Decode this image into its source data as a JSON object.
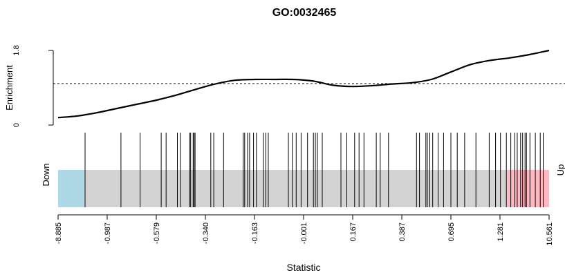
{
  "chart_data": {
    "type": "line",
    "title": "GO:0032465",
    "xlabel": "Statistic",
    "ylabel": "Enrichment",
    "y_ticks": [
      "0",
      "1.8"
    ],
    "ylim": [
      0,
      1.8
    ],
    "threshold_line": 1.0,
    "x_tick_labels": [
      "-8.885",
      "-0.987",
      "-0.579",
      "-0.340",
      "-0.163",
      "-0.001",
      "0.167",
      "0.387",
      "0.695",
      "1.281",
      "10.561"
    ],
    "x_tick_positions": [
      0,
      0.1,
      0.2,
      0.3,
      0.4,
      0.5,
      0.6,
      0.7,
      0.8,
      0.9,
      1.0
    ],
    "enrichment_curve": {
      "x": [
        0,
        0.04,
        0.08,
        0.12,
        0.16,
        0.2,
        0.24,
        0.28,
        0.32,
        0.36,
        0.4,
        0.44,
        0.48,
        0.52,
        0.56,
        0.6,
        0.64,
        0.68,
        0.72,
        0.76,
        0.8,
        0.84,
        0.88,
        0.92,
        0.96,
        1.0
      ],
      "y": [
        0.18,
        0.22,
        0.3,
        0.4,
        0.5,
        0.6,
        0.72,
        0.86,
        0.99,
        1.08,
        1.1,
        1.1,
        1.1,
        1.06,
        0.96,
        0.93,
        0.95,
        0.99,
        1.02,
        1.1,
        1.28,
        1.46,
        1.56,
        1.62,
        1.7,
        1.8
      ]
    },
    "gene_ranks": [
      0.055,
      0.128,
      0.167,
      0.21,
      0.22,
      0.243,
      0.249,
      0.268,
      0.27,
      0.275,
      0.277,
      0.279,
      0.311,
      0.317,
      0.337,
      0.377,
      0.38,
      0.386,
      0.39,
      0.398,
      0.404,
      0.418,
      0.423,
      0.428,
      0.469,
      0.477,
      0.485,
      0.495,
      0.508,
      0.52,
      0.524,
      0.528,
      0.538,
      0.576,
      0.588,
      0.604,
      0.613,
      0.623,
      0.648,
      0.656,
      0.673,
      0.73,
      0.736,
      0.749,
      0.752,
      0.757,
      0.763,
      0.774,
      0.785,
      0.8,
      0.813,
      0.828,
      0.851,
      0.878,
      0.891,
      0.901,
      0.913,
      0.922,
      0.93,
      0.935,
      0.942,
      0.946,
      0.951,
      0.954,
      0.961,
      0.972,
      0.982,
      0.988
    ],
    "regions": {
      "down_end": 0.053,
      "up_start": 0.915,
      "down_color": "#add8e6",
      "mid_color": "#d3d3d3",
      "up_color": "#ffb6c1"
    },
    "side_labels": {
      "down": "Down",
      "up": "Up"
    }
  }
}
